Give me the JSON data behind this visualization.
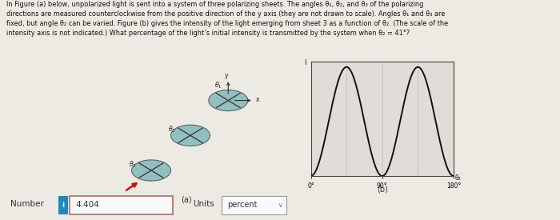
{
  "background_color": "#ede9e3",
  "text_color": "#111111",
  "title_text_lines": [
    "In Figure (a) below, unpolarized light is sent into a system of three polarizing sheets. The angles θ₁, θ₂, and θ₃ of the polarizing",
    "directions are measured counterclockwise from the positive direction of the y axis (they are not drawn to scale). Angles θ₁ and θ₃ are",
    "fixed, but angle θ₂ can be varied. Figure (b) gives the intensity of the light emerging from sheet 3 as a function of θ₂. (The scale of the",
    "intensity axis is not indicated.) What percentage of the light’s initial intensity is transmitted by the system when θ₂ = 41°?"
  ],
  "fig_a_label": "(a)",
  "fig_b_label": "(b)",
  "plot_b_xticks": [
    0,
    90,
    180
  ],
  "plot_b_xtick_labels": [
    "0°",
    "90°",
    "180°"
  ],
  "plot_b_ylabel": "I",
  "plot_b_xlabel": "θ₂",
  "number_label": "Number",
  "number_value": "4.404",
  "units_label": "Units",
  "units_value": "percent",
  "info_button_color": "#2288bb",
  "number_box_border": "#b08080",
  "ellipse_color": "#88bbbb",
  "ellipse_edge": "#555555",
  "arrow_color": "#cc1100",
  "grid_color": "#bbbbbb",
  "plot_line_color": "#111111",
  "plot_bg_color": "#e0ddd8",
  "axis_color": "#444444"
}
